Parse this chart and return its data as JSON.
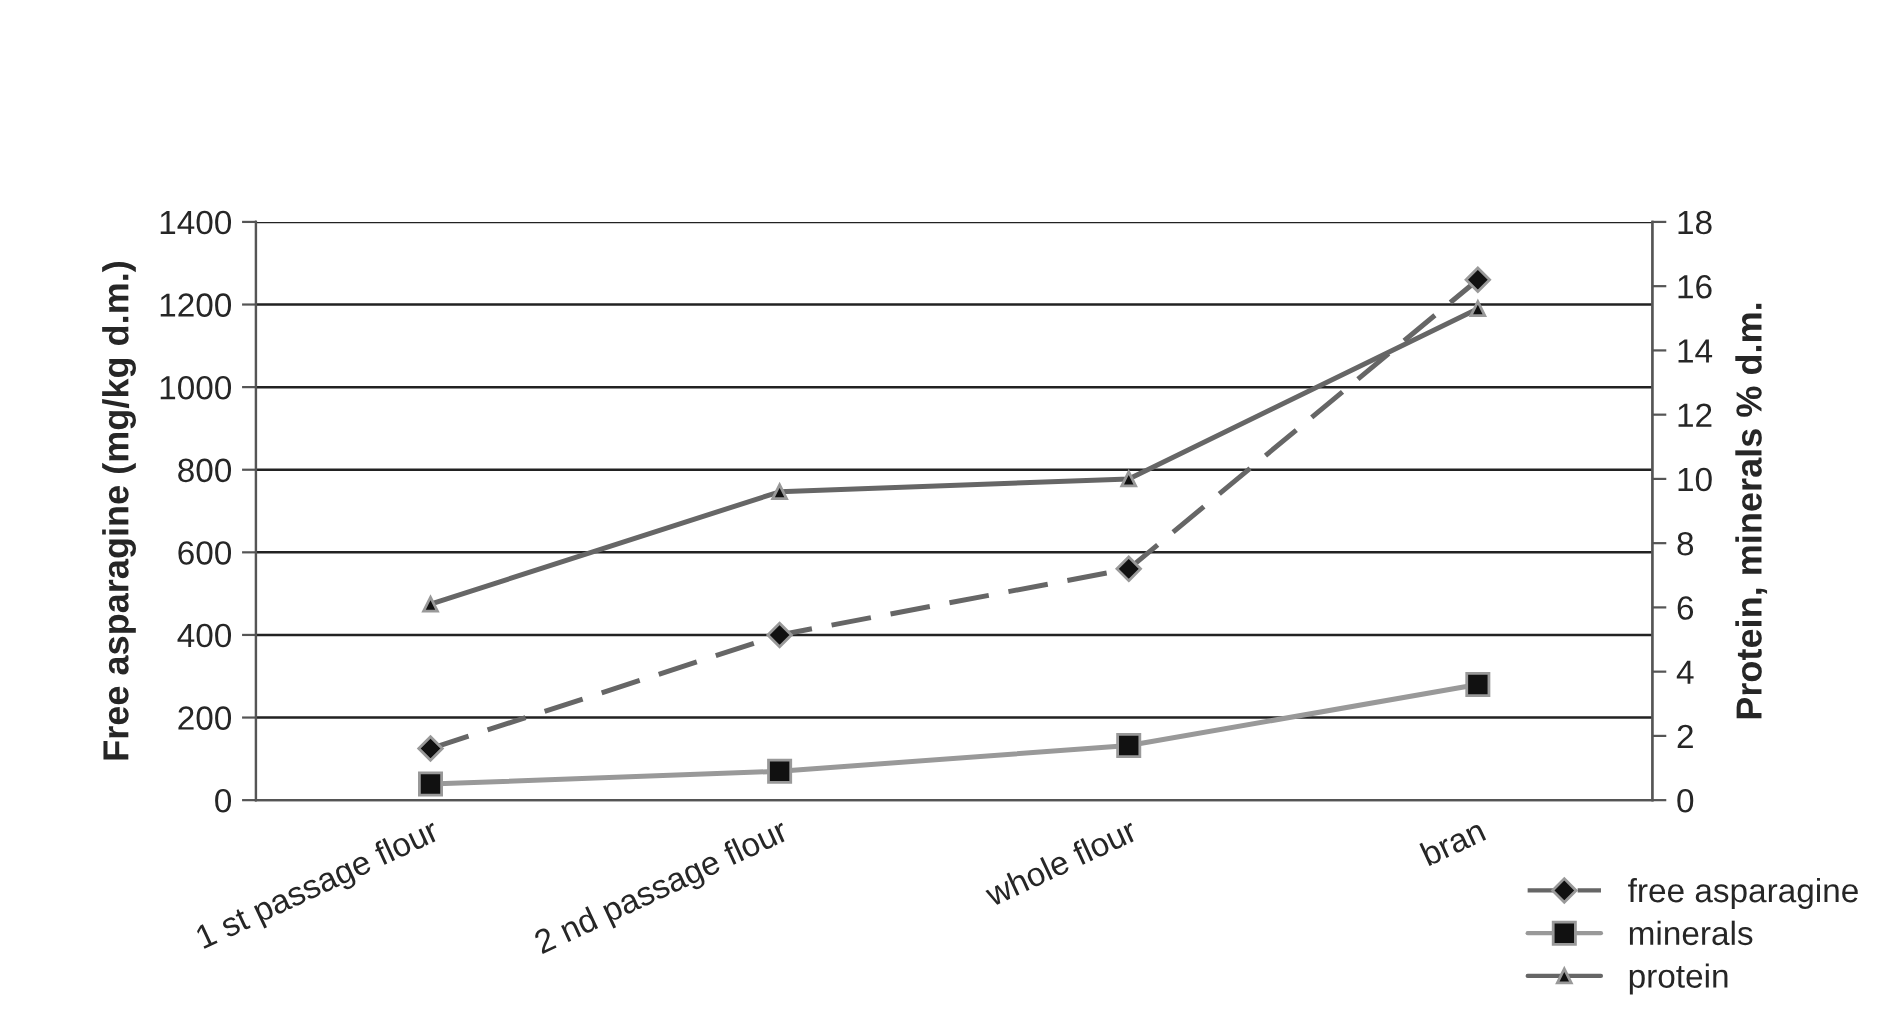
{
  "chart_data": {
    "type": "line",
    "categories": [
      "1 st passage flour",
      "2 nd passage flour",
      "whole flour",
      "bran"
    ],
    "ylabel": "Free asparagine (mg/kg d.m.)",
    "y2label": "Protein, minerals % d.m.",
    "ylim": [
      0,
      1400
    ],
    "yticks": [
      0,
      200,
      400,
      600,
      800,
      1000,
      1200,
      1400
    ],
    "y2lim": [
      0,
      18
    ],
    "y2ticks": [
      0,
      2,
      4,
      6,
      8,
      10,
      12,
      14,
      16,
      18
    ],
    "grid": "y",
    "legend": "bottom right",
    "series": [
      {
        "name": "free asparagine",
        "color": "#666666",
        "values": [
          125,
          400,
          560,
          1260
        ],
        "marker": "diamond",
        "line_style": "dashed"
      },
      {
        "name": "minerals",
        "color": "#999999",
        "values": [
          0.5,
          0.9,
          1.7,
          3.6
        ],
        "marker": "square",
        "line_style": "solid",
        "axis": "y2"
      },
      {
        "name": "protein",
        "color": "#666666",
        "values": [
          6.1,
          9.6,
          10.0,
          15.3
        ],
        "marker": "triangle",
        "line_style": "solid",
        "axis": "y2"
      }
    ]
  }
}
